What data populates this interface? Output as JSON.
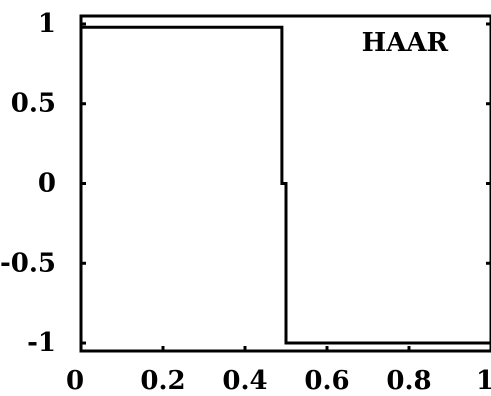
{
  "chart_data": {
    "type": "line",
    "title": "",
    "xlabel": "",
    "ylabel": "",
    "xlim": [
      0,
      1
    ],
    "ylim": [
      -1.05,
      1.05
    ],
    "xticks": [
      0,
      0.2,
      0.4,
      0.6,
      0.8,
      1
    ],
    "xtick_labels": [
      "0",
      "0.2",
      "0.4",
      "0.6",
      "0.8",
      "1"
    ],
    "yticks": [
      1,
      0.5,
      0,
      -0.5,
      -1
    ],
    "ytick_labels": [
      "1",
      "0.5",
      "0",
      "-0.5",
      "-1"
    ],
    "annotations": [
      {
        "text": "HAAR",
        "x": 0.79,
        "y": 0.83
      }
    ],
    "grid": false,
    "series": [
      {
        "x": [
          0,
          0.49,
          0.49,
          0.5,
          0.5,
          1
        ],
        "y": [
          0.98,
          0.98,
          0,
          0,
          -1,
          -1
        ]
      }
    ],
    "colors": {
      "line": "#000000",
      "axes": "#000000",
      "background": "#ffffff"
    }
  }
}
